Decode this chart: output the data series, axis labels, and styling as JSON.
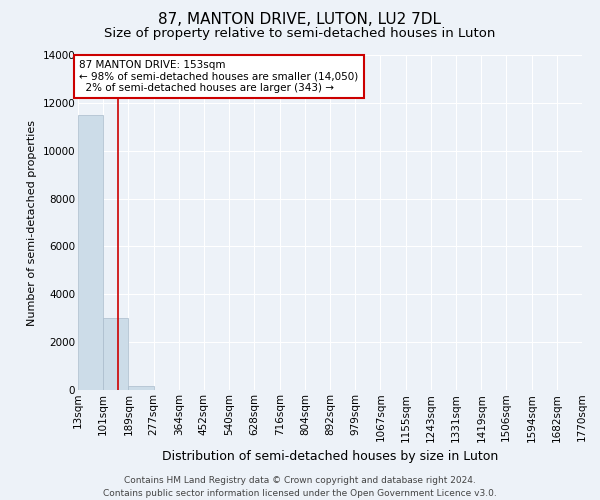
{
  "title": "87, MANTON DRIVE, LUTON, LU2 7DL",
  "subtitle": "Size of property relative to semi-detached houses in Luton",
  "xlabel": "Distribution of semi-detached houses by size in Luton",
  "ylabel": "Number of semi-detached properties",
  "bin_edges": [
    13,
    101,
    189,
    277,
    364,
    452,
    540,
    628,
    716,
    804,
    892,
    979,
    1067,
    1155,
    1243,
    1331,
    1419,
    1506,
    1594,
    1682,
    1770
  ],
  "bar_heights": [
    11500,
    3000,
    150,
    0,
    0,
    0,
    0,
    0,
    0,
    0,
    0,
    0,
    0,
    0,
    0,
    0,
    0,
    0,
    0,
    0
  ],
  "bar_color": "#ccdce8",
  "bar_edgecolor": "#aabccc",
  "property_size": 153,
  "property_line_color": "#cc0000",
  "annotation_line1": "87 MANTON DRIVE: 153sqm",
  "annotation_line2": "← 98% of semi-detached houses are smaller (14,050)",
  "annotation_line3": "  2% of semi-detached houses are larger (343) →",
  "annotation_box_color": "#ffffff",
  "annotation_border_color": "#cc0000",
  "ylim": [
    0,
    14000
  ],
  "yticks": [
    0,
    2000,
    4000,
    6000,
    8000,
    10000,
    12000,
    14000
  ],
  "footer_line1": "Contains HM Land Registry data © Crown copyright and database right 2024.",
  "footer_line2": "Contains public sector information licensed under the Open Government Licence v3.0.",
  "bg_color": "#edf2f8",
  "plot_bg_color": "#edf2f8",
  "grid_color": "#ffffff",
  "title_fontsize": 11,
  "subtitle_fontsize": 9.5,
  "xlabel_fontsize": 9,
  "ylabel_fontsize": 8,
  "tick_fontsize": 7.5,
  "annotation_fontsize": 7.5,
  "footer_fontsize": 6.5
}
